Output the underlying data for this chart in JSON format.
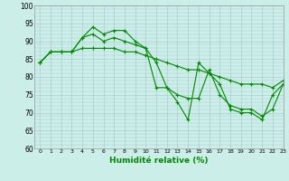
{
  "xlabel": "Humidité relative (%)",
  "ylabel": "",
  "background_color": "#cceee8",
  "grid_color": "#aacccc",
  "line_color": "#008800",
  "x_ticks": [
    0,
    1,
    2,
    3,
    4,
    5,
    6,
    7,
    8,
    9,
    10,
    11,
    12,
    13,
    14,
    15,
    16,
    17,
    18,
    19,
    20,
    21,
    22,
    23
  ],
  "ylim": [
    60,
    100
  ],
  "xlim": [
    -0.5,
    23
  ],
  "yticks": [
    60,
    65,
    70,
    75,
    80,
    85,
    90,
    95,
    100
  ],
  "series": [
    [
      84,
      87,
      87,
      87,
      91,
      94,
      92,
      93,
      93,
      90,
      88,
      77,
      77,
      73,
      68,
      84,
      81,
      78,
      71,
      70,
      70,
      68,
      75,
      78
    ],
    [
      84,
      87,
      87,
      87,
      91,
      92,
      90,
      91,
      90,
      89,
      88,
      84,
      77,
      75,
      74,
      74,
      82,
      75,
      72,
      71,
      71,
      69,
      71,
      78
    ],
    [
      84,
      87,
      87,
      87,
      88,
      88,
      88,
      88,
      87,
      87,
      86,
      85,
      84,
      83,
      82,
      82,
      81,
      80,
      79,
      78,
      78,
      78,
      77,
      79
    ]
  ]
}
